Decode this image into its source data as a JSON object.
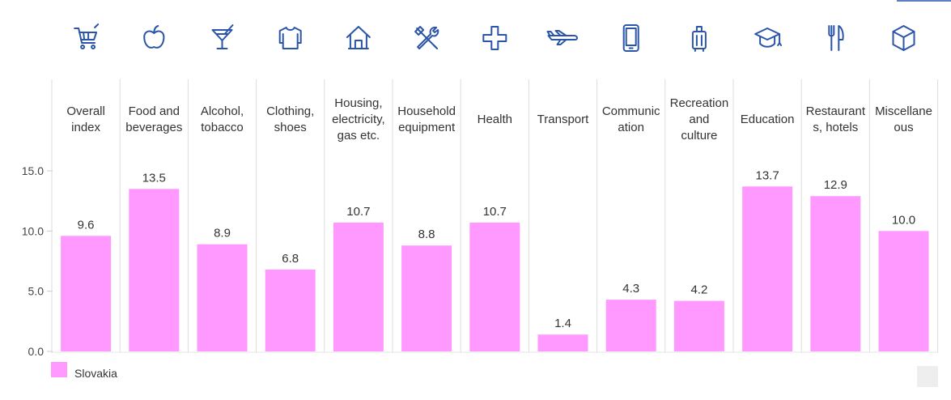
{
  "chart_data": {
    "type": "bar",
    "categories": [
      "Overall index",
      "Food and beverages",
      "Alcohol, tobacco",
      "Clothing, shoes",
      "Housing, electricity, gas etc.",
      "Household equipment",
      "Health",
      "Transport",
      "Communication",
      "Recreation and culture",
      "Education",
      "Restaurants, hotels",
      "Miscellaneous"
    ],
    "category_label_lines": [
      [
        "Overall",
        "index"
      ],
      [
        "Food and",
        "beverages"
      ],
      [
        "Alcohol,",
        "tobacco"
      ],
      [
        "Clothing,",
        "shoes"
      ],
      [
        "Housing,",
        "electricity,",
        "gas etc."
      ],
      [
        "Household",
        "equipment"
      ],
      [
        "Health"
      ],
      [
        "Transport"
      ],
      [
        "Communic",
        "ation"
      ],
      [
        "Recreation",
        "and",
        "culture"
      ],
      [
        "Education"
      ],
      [
        "Restaurant",
        "s, hotels"
      ],
      [
        "Miscellane",
        "ous"
      ]
    ],
    "category_icons": [
      "shopping-cart-icon",
      "apple-icon",
      "cocktail-glass-icon",
      "shirt-icon",
      "house-icon",
      "tools-icon",
      "health-cross-icon",
      "airplane-icon",
      "mobile-phone-icon",
      "suitcase-icon",
      "graduation-cap-icon",
      "fork-knife-icon",
      "box-icon"
    ],
    "series": [
      {
        "name": "Slovakia",
        "color": "#ff99ff",
        "values": [
          9.6,
          13.5,
          8.9,
          6.8,
          10.7,
          8.8,
          10.7,
          1.4,
          4.3,
          4.2,
          13.7,
          12.9,
          10.0
        ],
        "value_labels": [
          "9.6",
          "13.5",
          "8.9",
          "6.8",
          "10.7",
          "8.8",
          "10.7",
          "1.4",
          "4.3",
          "4.2",
          "13.7",
          "12.9",
          "10.0"
        ]
      }
    ],
    "ylim": [
      0,
      15
    ],
    "yticks": [
      0,
      5,
      10,
      15
    ],
    "ytick_labels": [
      "0.0",
      "5.0",
      "10.0",
      "15.0"
    ],
    "legend_position": "bottom-left",
    "grid": "vertical separators between categories",
    "title": "",
    "xlabel": "",
    "ylabel": ""
  },
  "colors": {
    "icon": "#2b55a8",
    "bar": "#ff99ff",
    "separator": "#dddddd",
    "axis_tick": "#cccccc"
  }
}
